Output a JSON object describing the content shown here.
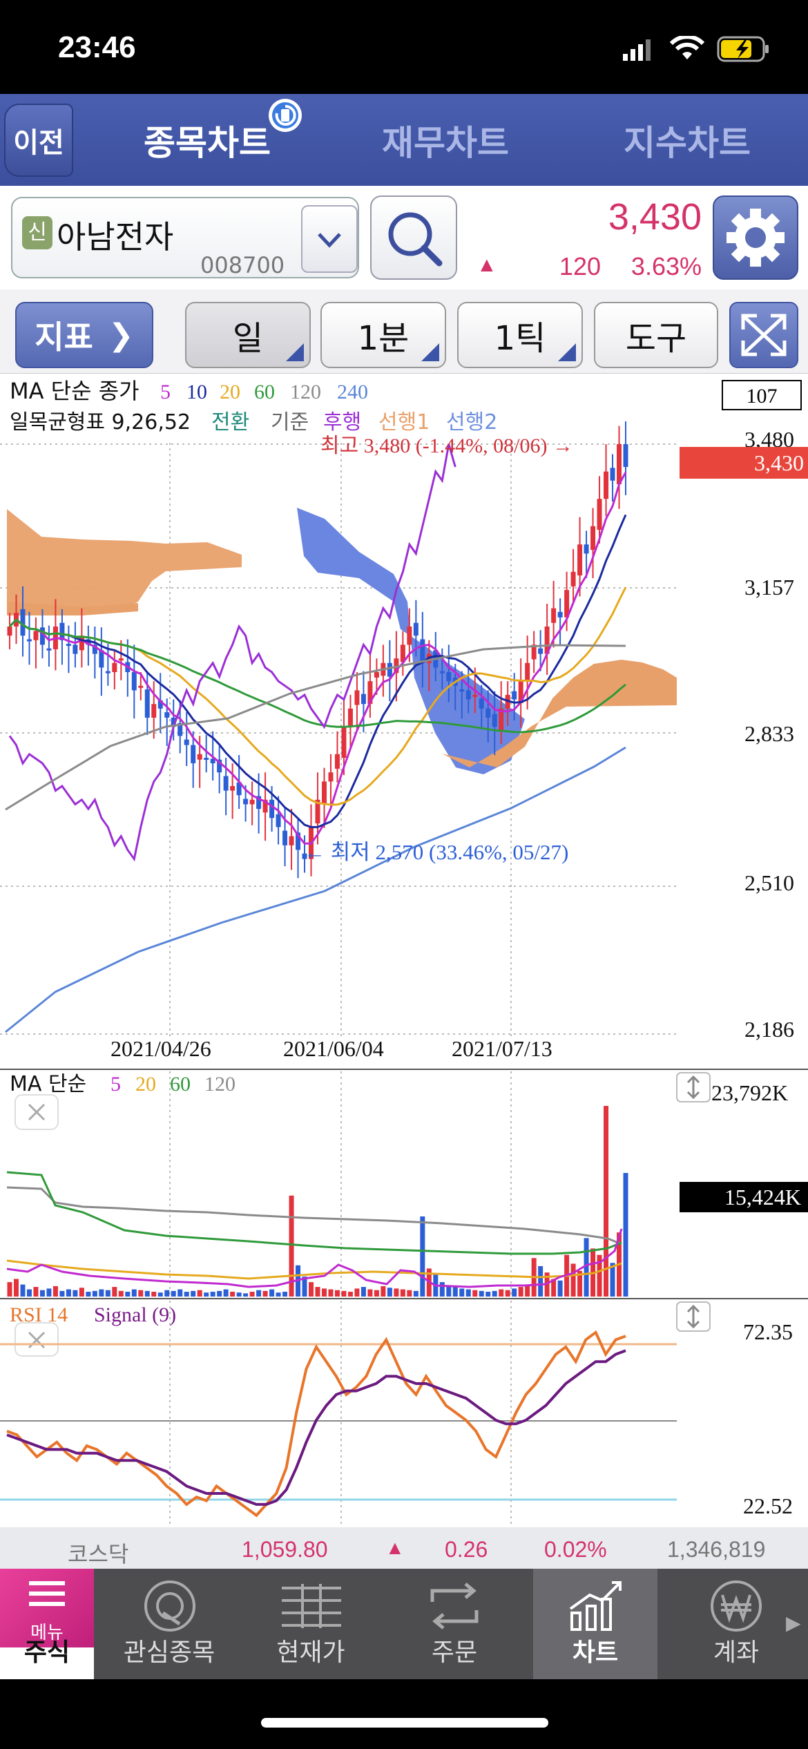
{
  "status": {
    "time": "23:46"
  },
  "nav": {
    "back": "이전",
    "tabs": [
      "종목차트",
      "재무차트",
      "지수차트"
    ]
  },
  "stock": {
    "badge": "신",
    "name": "아남전자",
    "code": "008700",
    "price": "3,430",
    "change": "120",
    "change_pct": "3.63%"
  },
  "toolbar": {
    "indicator": "지표",
    "period": "일",
    "minute": "1분",
    "tick": "1틱",
    "tools": "도구"
  },
  "main_chart": {
    "ma_title": "MA 단순 종가",
    "ma_periods": [
      "5",
      "10",
      "20",
      "60",
      "120",
      "240"
    ],
    "ichimoku_title": "일목균형표 9,26,52",
    "ichimoku_lines": [
      "전환",
      "기준",
      "후행",
      "선행1",
      "선행2"
    ],
    "zoom_box": "107",
    "y_ticks": [
      "3,480",
      "3,157",
      "2,833",
      "2,510",
      "2,186"
    ],
    "current_price_tag": "3,430",
    "x_ticks": [
      "2021/04/26",
      "2021/06/04",
      "2021/07/13"
    ],
    "high_label": "최고 3,480 (-1.44%, 08/06) →",
    "low_label": "← 최저 2,570 (33.46%, 05/27)"
  },
  "volume_chart": {
    "title": "MA 단순",
    "ma_periods": [
      "5",
      "20",
      "60",
      "120"
    ],
    "y_max": "23,792K",
    "current_tag": "15,424K"
  },
  "rsi_chart": {
    "title": "RSI 14",
    "signal": "Signal (9)",
    "y_top": "72.35",
    "y_bottom": "22.52"
  },
  "index_bar": {
    "name": "코스닥",
    "value": "1,059.80",
    "change": "0.26",
    "change_pct": "0.02%",
    "volume": "1,346,819"
  },
  "bottom_nav": {
    "menu": "메뉴",
    "items": [
      "주식",
      "관심종목",
      "현재가",
      "주문",
      "차트",
      "계좌"
    ]
  },
  "colors": {
    "up": "#e2323c",
    "down": "#2c5fd6",
    "accent": "#3c4f9e",
    "ma5": "#c02ad0",
    "ma10": "#1b2aa0",
    "ma20": "#e6a91e",
    "ma60": "#2f9a3a",
    "ma120": "#8a8a8a",
    "ma240": "#5a86d8"
  },
  "chart_data": [
    {
      "type": "candlestick",
      "ylim": [
        2186,
        3480
      ],
      "y_ticks": [
        3480,
        3157,
        2833,
        2510,
        2186
      ],
      "x_ticks": [
        "2021/04/26",
        "2021/06/04",
        "2021/07/13"
      ],
      "close_series": [
        3080,
        3110,
        3060,
        3050,
        3070,
        3040,
        3030,
        3080,
        3050,
        3040,
        3020,
        3060,
        3040,
        3020,
        2990,
        2980,
        3000,
        3010,
        2980,
        2940,
        2950,
        2880,
        2910,
        2900,
        2880,
        2860,
        2840,
        2820,
        2780,
        2800,
        2790,
        2780,
        2760,
        2720,
        2730,
        2710,
        2690,
        2700,
        2680,
        2700,
        2660,
        2640,
        2600,
        2620,
        2590,
        2570,
        2640,
        2700,
        2740,
        2760,
        2800,
        2860,
        2900,
        2940,
        2910,
        2960,
        2980,
        3000,
        2970,
        3010,
        3040,
        3080,
        3060,
        3000,
        3020,
        2990,
        2980,
        2960,
        2950,
        2940,
        2920,
        2930,
        2900,
        2880,
        2860,
        2900,
        2930,
        2920,
        2960,
        3000,
        3040,
        3020,
        3080,
        3120,
        3100,
        3160,
        3200,
        3260,
        3240,
        3300,
        3360,
        3420,
        3400,
        3480,
        3430
      ],
      "ma_periods": [
        5,
        10,
        20,
        60,
        120,
        240
      ],
      "high": {
        "value": 3480,
        "pct": "-1.44%",
        "date": "08/06"
      },
      "low": {
        "value": 2570,
        "pct": "33.46%",
        "date": "05/27"
      },
      "last": 3430
    },
    {
      "type": "bar",
      "title": "volume",
      "ymax_label": "23,792K",
      "last_label": "15,424K",
      "values_k": [
        1800,
        2200,
        1500,
        900,
        1200,
        800,
        1000,
        1300,
        700,
        900,
        800,
        1100,
        600,
        700,
        900,
        800,
        1200,
        700,
        600,
        900,
        800,
        700,
        600,
        500,
        800,
        700,
        900,
        600,
        700,
        800,
        500,
        600,
        700,
        900,
        600,
        500,
        400,
        600,
        800,
        700,
        900,
        500,
        600,
        12600,
        3900,
        2500,
        1800,
        1200,
        1000,
        900,
        800,
        700,
        600,
        1000,
        1200,
        900,
        800,
        1300,
        1100,
        1000,
        900,
        800,
        700,
        10000,
        3500,
        2800,
        1800,
        1400,
        1200,
        1000,
        900,
        800,
        700,
        600,
        700,
        900,
        800,
        1000,
        1200,
        1400,
        4800,
        3800,
        3000,
        2200,
        2000,
        5200,
        4100,
        3200,
        7300,
        6000,
        5200,
        23792,
        4200,
        8000,
        15424
      ]
    },
    {
      "type": "line",
      "title": "RSI 14",
      "ylim": [
        22.52,
        72.35
      ],
      "series": [
        {
          "name": "RSI 14",
          "values": [
            45,
            44,
            41,
            38,
            40,
            42,
            39,
            37,
            41,
            40,
            38,
            36,
            39,
            37,
            35,
            33,
            30,
            28,
            25,
            27,
            26,
            30,
            28,
            26,
            24,
            22,
            25,
            28,
            35,
            50,
            62,
            68,
            64,
            60,
            55,
            57,
            60,
            66,
            70,
            64,
            58,
            55,
            60,
            56,
            52,
            50,
            48,
            45,
            40,
            38,
            44,
            50,
            55,
            58,
            62,
            66,
            68,
            64,
            70,
            72,
            66,
            70,
            71
          ]
        },
        {
          "name": "Signal (9)",
          "values": [
            44,
            43,
            42,
            41,
            40,
            40,
            40,
            39,
            39,
            39,
            38,
            37,
            37,
            37,
            36,
            35,
            34,
            32,
            30,
            29,
            28,
            28,
            28,
            27,
            26,
            25,
            25,
            26,
            29,
            35,
            42,
            48,
            52,
            55,
            56,
            56,
            57,
            58,
            60,
            60,
            59,
            58,
            58,
            57,
            56,
            55,
            54,
            52,
            50,
            48,
            47,
            47,
            48,
            50,
            52,
            55,
            58,
            60,
            62,
            64,
            64,
            66,
            67
          ]
        }
      ]
    }
  ]
}
